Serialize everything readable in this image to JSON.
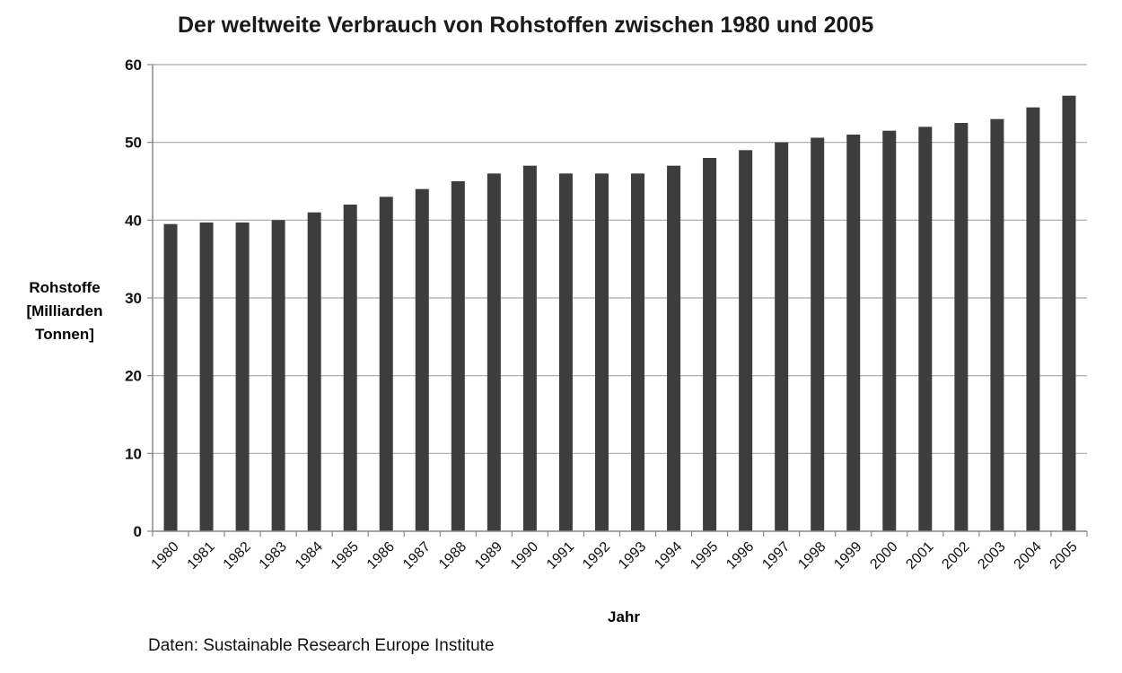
{
  "chart_data": {
    "type": "bar",
    "title": "Der weltweite Verbrauch von Rohstoffen zwischen 1980 und 2005",
    "xlabel": "Jahr",
    "ylabel_lines": [
      "Rohstoffe",
      "[Milliarden",
      "Tonnen]"
    ],
    "source": "Daten: Sustainable Research Europe Institute",
    "categories": [
      "1980",
      "1981",
      "1982",
      "1983",
      "1984",
      "1985",
      "1986",
      "1987",
      "1988",
      "1989",
      "1990",
      "1991",
      "1992",
      "1993",
      "1994",
      "1995",
      "1996",
      "1997",
      "1998",
      "1999",
      "2000",
      "2001",
      "2002",
      "2003",
      "2004",
      "2005"
    ],
    "values": [
      39.5,
      39.7,
      39.7,
      40,
      41,
      42,
      43,
      44,
      45,
      46,
      47,
      46,
      46,
      46,
      47,
      48,
      49,
      50,
      50.6,
      51,
      51.5,
      52,
      52.5,
      53,
      54.5,
      56
    ],
    "ylim": [
      0,
      60
    ],
    "yticks": [
      0,
      10,
      20,
      30,
      40,
      50,
      60
    ],
    "grid": true,
    "legend": "none",
    "bar_color": "#3d3d3d",
    "grid_color": "#a6a6a6"
  }
}
